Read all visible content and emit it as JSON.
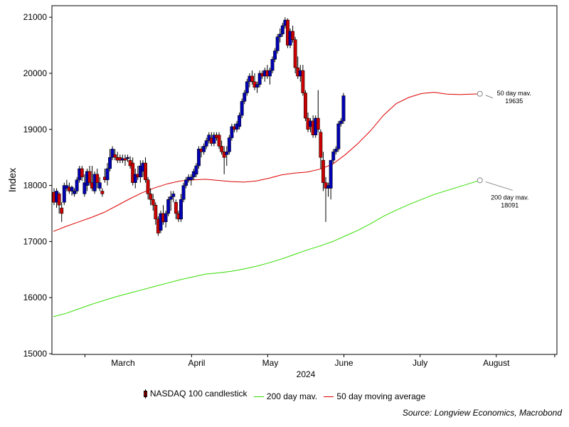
{
  "colors": {
    "candle_up": "#0000b4",
    "candle_down": "#cc0000",
    "ma200": "#33dd00",
    "ma50": "#dd0000",
    "annotation": "#888888"
  },
  "chart_data": {
    "type": "candlestick",
    "title": "",
    "xlabel": "2024",
    "ylabel": "Index",
    "ylim": [
      15000,
      21000
    ],
    "y_ticks": [
      "15000",
      "16000",
      "17000",
      "18000",
      "19000",
      "20000",
      "21000"
    ],
    "x_ticks": [
      "March",
      "April",
      "May",
      "June",
      "July",
      "August"
    ],
    "grid": false,
    "legend_position": "bottom",
    "series": [
      {
        "name": "NASDAQ 100 candlestick",
        "type": "candlestick",
        "ohlc": [
          [
            17880,
            17950,
            17650,
            17700
          ],
          [
            17700,
            17950,
            17600,
            17900
          ],
          [
            17850,
            17880,
            17500,
            17650
          ],
          [
            17600,
            17700,
            17350,
            17500
          ],
          [
            17700,
            18050,
            17650,
            18000
          ],
          [
            17950,
            18100,
            17900,
            18000
          ],
          [
            17970,
            18050,
            17850,
            17900
          ],
          [
            17900,
            18000,
            17820,
            17970
          ],
          [
            17850,
            17950,
            17800,
            17900
          ],
          [
            17900,
            18150,
            17850,
            18100
          ],
          [
            18100,
            18350,
            18050,
            18300
          ],
          [
            18300,
            18350,
            18080,
            18150
          ],
          [
            17850,
            18200,
            17800,
            18050
          ],
          [
            18000,
            18300,
            17900,
            18250
          ],
          [
            18250,
            18350,
            18000,
            18050
          ],
          [
            18050,
            18350,
            17900,
            17950
          ],
          [
            17900,
            18250,
            17850,
            18200
          ],
          [
            18200,
            18300,
            17950,
            18050
          ],
          [
            17950,
            18150,
            17900,
            18050
          ],
          [
            17900,
            17950,
            17800,
            17850
          ],
          [
            18150,
            18300,
            18050,
            18100
          ],
          [
            18100,
            18400,
            18000,
            18300
          ],
          [
            18300,
            18650,
            18250,
            18500
          ],
          [
            18500,
            18700,
            18450,
            18650
          ],
          [
            18550,
            18650,
            18450,
            18500
          ],
          [
            18500,
            18600,
            18400,
            18450
          ],
          [
            18500,
            18550,
            18400,
            18450
          ],
          [
            18450,
            18550,
            18400,
            18480
          ],
          [
            18480,
            18550,
            18350,
            18450
          ],
          [
            18480,
            18550,
            18420,
            18500
          ],
          [
            18450,
            18520,
            18300,
            18350
          ],
          [
            18400,
            18500,
            18000,
            18050
          ],
          [
            18050,
            18300,
            17950,
            18200
          ],
          [
            18200,
            18350,
            18100,
            18150
          ],
          [
            18150,
            18450,
            18050,
            18350
          ],
          [
            18250,
            18450,
            18150,
            18400
          ],
          [
            18400,
            18500,
            18050,
            18100
          ],
          [
            18100,
            18150,
            17750,
            17850
          ],
          [
            17850,
            17950,
            17650,
            17750
          ],
          [
            17750,
            17850,
            17550,
            17650
          ],
          [
            17650,
            17700,
            17300,
            17400
          ],
          [
            17400,
            17450,
            17100,
            17150
          ],
          [
            17200,
            17550,
            17150,
            17500
          ],
          [
            17500,
            17650,
            17300,
            17350
          ],
          [
            17350,
            17550,
            17250,
            17500
          ],
          [
            17500,
            17800,
            17450,
            17750
          ],
          [
            17750,
            17900,
            17550,
            17800
          ],
          [
            17800,
            17900,
            17700,
            17850
          ],
          [
            17700,
            17750,
            17400,
            17500
          ],
          [
            17500,
            17550,
            17350,
            17400
          ],
          [
            17400,
            17850,
            17350,
            17750
          ],
          [
            17750,
            18050,
            17700,
            18000
          ],
          [
            18000,
            18150,
            17950,
            18100
          ],
          [
            18100,
            18200,
            18050,
            18150
          ],
          [
            18100,
            18200,
            18000,
            18150
          ],
          [
            18150,
            18300,
            18100,
            18250
          ],
          [
            18200,
            18400,
            18150,
            18350
          ],
          [
            18350,
            18700,
            18300,
            18650
          ],
          [
            18650,
            18700,
            18500,
            18600
          ],
          [
            18600,
            18750,
            18550,
            18700
          ],
          [
            18700,
            18850,
            18650,
            18800
          ],
          [
            18800,
            18950,
            18750,
            18900
          ],
          [
            18850,
            18950,
            18700,
            18750
          ],
          [
            18750,
            18950,
            18700,
            18900
          ],
          [
            18900,
            18950,
            18800,
            18850
          ],
          [
            18900,
            18950,
            18650,
            18700
          ],
          [
            18700,
            18800,
            18550,
            18600
          ],
          [
            18600,
            18700,
            18200,
            18500
          ],
          [
            18550,
            18700,
            18350,
            18600
          ],
          [
            18600,
            18900,
            18550,
            18850
          ],
          [
            18850,
            19100,
            18800,
            19050
          ],
          [
            19050,
            19100,
            18950,
            19000
          ],
          [
            19000,
            19150,
            18950,
            19100
          ],
          [
            19050,
            19300,
            19000,
            19250
          ],
          [
            19250,
            19550,
            19200,
            19500
          ],
          [
            19500,
            19700,
            19450,
            19650
          ],
          [
            19650,
            19900,
            19600,
            19850
          ],
          [
            19850,
            20000,
            19750,
            19950
          ],
          [
            19950,
            20050,
            19800,
            19850
          ],
          [
            19850,
            20000,
            19700,
            19750
          ],
          [
            19750,
            19850,
            19650,
            19800
          ],
          [
            19800,
            20050,
            19750,
            20000
          ],
          [
            20000,
            20050,
            19900,
            19950
          ],
          [
            19950,
            20100,
            19850,
            20050
          ],
          [
            20050,
            20150,
            19900,
            19950
          ],
          [
            19950,
            20100,
            19800,
            20050
          ],
          [
            20050,
            20300,
            20000,
            20250
          ],
          [
            20250,
            20450,
            20200,
            20400
          ],
          [
            20400,
            20700,
            20350,
            20650
          ],
          [
            20650,
            20800,
            20550,
            20700
          ],
          [
            20700,
            20900,
            20650,
            20850
          ],
          [
            20850,
            21000,
            20800,
            20950
          ],
          [
            20950,
            20980,
            20450,
            20500
          ],
          [
            20500,
            20800,
            20450,
            20750
          ],
          [
            20750,
            20850,
            20550,
            20600
          ],
          [
            20600,
            20650,
            20000,
            20100
          ],
          [
            20100,
            20300,
            19900,
            19950
          ],
          [
            19950,
            20150,
            19850,
            20050
          ],
          [
            20050,
            20150,
            19600,
            19650
          ],
          [
            19650,
            19700,
            19150,
            19200
          ],
          [
            19200,
            19300,
            18950,
            19000
          ],
          [
            19050,
            19200,
            18950,
            19150
          ],
          [
            19150,
            19250,
            18850,
            18900
          ],
          [
            18900,
            19250,
            18850,
            19200
          ],
          [
            19200,
            19700,
            18950,
            19000
          ],
          [
            18950,
            19000,
            18300,
            18500
          ],
          [
            18450,
            18600,
            17900,
            18050
          ],
          [
            18050,
            18150,
            17350,
            17950
          ],
          [
            17950,
            18050,
            17800,
            18000
          ],
          [
            17950,
            18450,
            17750,
            18450
          ],
          [
            18450,
            18650,
            18400,
            18600
          ],
          [
            18600,
            18700,
            18550,
            18650
          ],
          [
            18650,
            19150,
            18600,
            19100
          ],
          [
            19100,
            19200,
            19050,
            19150
          ],
          [
            19150,
            19650,
            19100,
            19600
          ]
        ]
      },
      {
        "name": "200 day mav.",
        "type": "line",
        "points": [
          [
            0,
            15660
          ],
          [
            5,
            15720
          ],
          [
            10,
            15800
          ],
          [
            15,
            15880
          ],
          [
            20,
            15950
          ],
          [
            25,
            16020
          ],
          [
            30,
            16080
          ],
          [
            35,
            16140
          ],
          [
            40,
            16200
          ],
          [
            45,
            16260
          ],
          [
            50,
            16320
          ],
          [
            55,
            16370
          ],
          [
            60,
            16420
          ],
          [
            65,
            16440
          ],
          [
            70,
            16470
          ],
          [
            75,
            16510
          ],
          [
            80,
            16560
          ],
          [
            85,
            16620
          ],
          [
            90,
            16690
          ],
          [
            95,
            16770
          ],
          [
            100,
            16850
          ],
          [
            105,
            16920
          ],
          [
            110,
            17000
          ],
          [
            115,
            17100
          ],
          [
            120,
            17200
          ],
          [
            125,
            17320
          ],
          [
            130,
            17450
          ],
          [
            135,
            17560
          ],
          [
            140,
            17660
          ],
          [
            145,
            17750
          ],
          [
            150,
            17840
          ],
          [
            155,
            17910
          ],
          [
            160,
            17980
          ],
          [
            165,
            18050
          ],
          [
            168,
            18091
          ]
        ]
      },
      {
        "name": "50 day moving average",
        "type": "line",
        "points": [
          [
            0,
            17180
          ],
          [
            5,
            17270
          ],
          [
            10,
            17350
          ],
          [
            15,
            17430
          ],
          [
            20,
            17520
          ],
          [
            25,
            17640
          ],
          [
            30,
            17760
          ],
          [
            35,
            17870
          ],
          [
            40,
            17960
          ],
          [
            45,
            18030
          ],
          [
            50,
            18080
          ],
          [
            55,
            18100
          ],
          [
            60,
            18110
          ],
          [
            65,
            18090
          ],
          [
            70,
            18070
          ],
          [
            75,
            18060
          ],
          [
            80,
            18080
          ],
          [
            85,
            18130
          ],
          [
            90,
            18190
          ],
          [
            95,
            18220
          ],
          [
            100,
            18240
          ],
          [
            105,
            18290
          ],
          [
            110,
            18380
          ],
          [
            115,
            18550
          ],
          [
            120,
            18750
          ],
          [
            125,
            18980
          ],
          [
            130,
            19250
          ],
          [
            135,
            19460
          ],
          [
            140,
            19570
          ],
          [
            145,
            19640
          ],
          [
            150,
            19660
          ],
          [
            155,
            19630
          ],
          [
            160,
            19620
          ],
          [
            165,
            19630
          ],
          [
            168,
            19635
          ]
        ]
      }
    ],
    "annotations": [
      {
        "label": "50 day mav.",
        "value": "19635"
      },
      {
        "label": "200 day mav.",
        "value": "18091"
      }
    ]
  },
  "legend": {
    "items": [
      {
        "label": "NASDAQ 100 candlestick"
      },
      {
        "label": "200 day mav."
      },
      {
        "label": "50 day moving average"
      }
    ]
  },
  "source": "Source: Longview Economics, Macrobond"
}
